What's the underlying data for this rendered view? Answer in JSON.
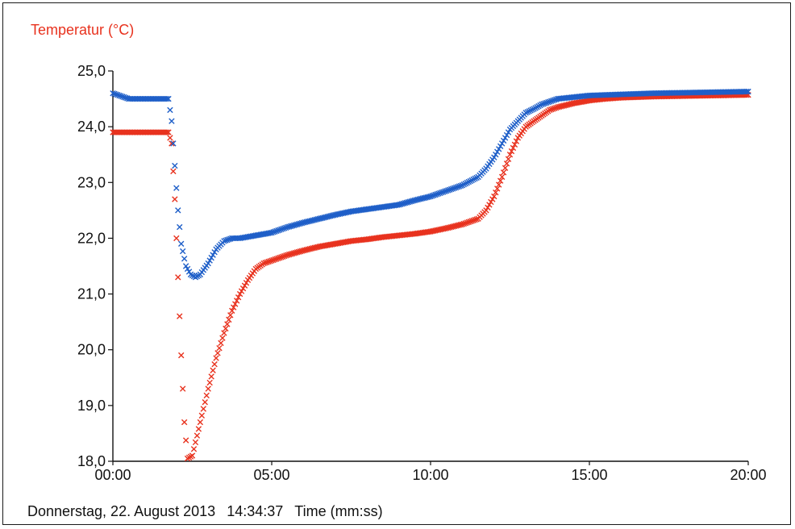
{
  "chart_data": {
    "type": "scatter",
    "ylabel": "Temperatur (°C)",
    "xlabel": "Time (mm:ss)",
    "footer_date": "Donnerstag, 22. August 2013",
    "footer_time": "14:34:37",
    "xlim": [
      0,
      20
    ],
    "ylim": [
      18,
      25
    ],
    "x_ticks": [
      0,
      5,
      10,
      15,
      20
    ],
    "x_tick_labels": [
      "00:00",
      "05:00",
      "10:00",
      "15:00",
      "20:00"
    ],
    "y_ticks": [
      18,
      19,
      20,
      21,
      22,
      23,
      24,
      25
    ],
    "y_tick_labels": [
      "18,0",
      "19,0",
      "20,0",
      "21,0",
      "22,0",
      "23,0",
      "24,0",
      "25,0"
    ],
    "grid": false,
    "marker": "x",
    "colors": {
      "red": "#e8321e",
      "blue": "#1f5fc8",
      "ylabel": "#e8321e"
    },
    "series": [
      {
        "color_key": "red",
        "x": [
          0,
          0.5,
          1.0,
          1.5,
          1.75,
          1.85,
          1.95,
          2.05,
          2.15,
          2.25,
          2.35,
          2.5,
          2.75,
          3.0,
          3.25,
          3.5,
          3.75,
          4.0,
          4.25,
          4.5,
          4.75,
          5.0,
          5.5,
          6.0,
          6.5,
          7.0,
          7.5,
          8.0,
          8.5,
          9.0,
          9.5,
          10.0,
          10.5,
          11.0,
          11.5,
          11.75,
          12.0,
          12.25,
          12.5,
          12.75,
          13.0,
          13.25,
          13.5,
          13.75,
          14.0,
          14.5,
          15.0,
          15.5,
          16.0,
          17.0,
          18.0,
          19.0,
          20.0
        ],
        "y": [
          23.9,
          23.9,
          23.9,
          23.9,
          23.9,
          23.7,
          22.7,
          21.3,
          19.9,
          18.7,
          18.05,
          18.1,
          18.7,
          19.3,
          19.85,
          20.3,
          20.7,
          21.0,
          21.25,
          21.45,
          21.55,
          21.6,
          21.7,
          21.78,
          21.85,
          21.9,
          21.95,
          21.98,
          22.02,
          22.05,
          22.08,
          22.12,
          22.18,
          22.25,
          22.35,
          22.5,
          22.75,
          23.1,
          23.5,
          23.8,
          24.0,
          24.1,
          24.2,
          24.3,
          24.35,
          24.42,
          24.47,
          24.5,
          24.52,
          24.54,
          24.55,
          24.56,
          24.57
        ]
      },
      {
        "color_key": "blue",
        "x": [
          0,
          0.5,
          1.0,
          1.5,
          1.75,
          1.85,
          1.95,
          2.05,
          2.15,
          2.3,
          2.45,
          2.6,
          2.75,
          3.0,
          3.25,
          3.5,
          3.75,
          4.0,
          4.5,
          5.0,
          5.5,
          6.0,
          6.5,
          7.0,
          7.5,
          8.0,
          8.5,
          9.0,
          9.5,
          10.0,
          10.5,
          11.0,
          11.5,
          11.75,
          12.0,
          12.25,
          12.5,
          12.75,
          13.0,
          13.25,
          13.5,
          13.75,
          14.0,
          14.5,
          15.0,
          16.0,
          17.0,
          18.0,
          19.0,
          20.0
        ],
        "y": [
          24.6,
          24.5,
          24.5,
          24.5,
          24.5,
          24.1,
          23.3,
          22.5,
          21.9,
          21.5,
          21.35,
          21.3,
          21.35,
          21.55,
          21.8,
          21.95,
          22.0,
          22.0,
          22.05,
          22.1,
          22.2,
          22.28,
          22.35,
          22.42,
          22.48,
          22.52,
          22.56,
          22.6,
          22.68,
          22.75,
          22.85,
          22.95,
          23.1,
          23.25,
          23.45,
          23.7,
          23.95,
          24.1,
          24.25,
          24.32,
          24.4,
          24.45,
          24.5,
          24.53,
          24.56,
          24.58,
          24.6,
          24.61,
          24.62,
          24.63
        ]
      }
    ]
  }
}
